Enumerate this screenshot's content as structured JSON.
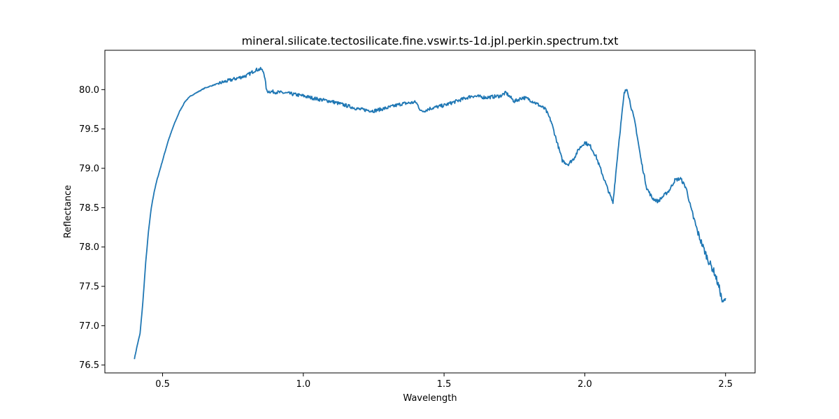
{
  "chart_data": {
    "type": "line",
    "title": "mineral.silicate.tectosilicate.fine.vswir.ts-1d.jpl.perkin.spectrum.txt",
    "xlabel": "Wavelength",
    "ylabel": "Reflectance",
    "xlim": [
      0.295,
      2.605
    ],
    "ylim": [
      76.4,
      80.5
    ],
    "xticks": [
      {
        "value": 0.5,
        "label": "0.5"
      },
      {
        "value": 1.0,
        "label": "1.0"
      },
      {
        "value": 1.5,
        "label": "1.5"
      },
      {
        "value": 2.0,
        "label": "2.0"
      },
      {
        "value": 2.5,
        "label": "2.5"
      }
    ],
    "yticks": [
      {
        "value": 76.5,
        "label": "76.5"
      },
      {
        "value": 77.0,
        "label": "77.0"
      },
      {
        "value": 77.5,
        "label": "77.5"
      },
      {
        "value": 78.0,
        "label": "78.0"
      },
      {
        "value": 78.5,
        "label": "78.5"
      },
      {
        "value": 79.0,
        "label": "79.0"
      },
      {
        "value": 79.5,
        "label": "79.5"
      },
      {
        "value": 80.0,
        "label": "80.0"
      }
    ],
    "grid": false,
    "series": [
      {
        "color": "#1f77b4",
        "x": [
          0.4,
          0.41,
          0.42,
          0.43,
          0.44,
          0.45,
          0.46,
          0.47,
          0.48,
          0.5,
          0.52,
          0.54,
          0.56,
          0.58,
          0.6,
          0.65,
          0.7,
          0.75,
          0.8,
          0.83,
          0.85,
          0.86,
          0.87,
          0.9,
          0.95,
          1.0,
          1.05,
          1.1,
          1.15,
          1.2,
          1.25,
          1.3,
          1.35,
          1.4,
          1.42,
          1.45,
          1.5,
          1.55,
          1.6,
          1.65,
          1.7,
          1.72,
          1.75,
          1.78,
          1.8,
          1.83,
          1.86,
          1.88,
          1.9,
          1.92,
          1.94,
          1.96,
          1.98,
          2.0,
          2.02,
          2.04,
          2.06,
          2.08,
          2.1,
          2.12,
          2.14,
          2.15,
          2.16,
          2.18,
          2.2,
          2.22,
          2.24,
          2.26,
          2.28,
          2.3,
          2.32,
          2.34,
          2.36,
          2.38,
          2.4,
          2.42,
          2.44,
          2.46,
          2.48,
          2.49,
          2.5
        ],
        "y": [
          76.58,
          76.75,
          76.9,
          77.3,
          77.8,
          78.2,
          78.5,
          78.7,
          78.85,
          79.1,
          79.35,
          79.55,
          79.72,
          79.85,
          79.92,
          80.02,
          80.08,
          80.13,
          80.18,
          80.25,
          80.26,
          80.22,
          79.98,
          79.97,
          79.95,
          79.92,
          79.88,
          79.85,
          79.8,
          79.75,
          79.73,
          79.77,
          79.82,
          79.84,
          79.72,
          79.76,
          79.8,
          79.86,
          79.92,
          79.9,
          79.92,
          79.96,
          79.85,
          79.9,
          79.88,
          79.82,
          79.75,
          79.6,
          79.35,
          79.1,
          79.05,
          79.12,
          79.25,
          79.33,
          79.28,
          79.15,
          78.95,
          78.75,
          78.56,
          79.3,
          79.95,
          80.02,
          79.85,
          79.55,
          79.1,
          78.75,
          78.62,
          78.58,
          78.65,
          78.72,
          78.85,
          78.87,
          78.75,
          78.45,
          78.2,
          78.0,
          77.82,
          77.68,
          77.45,
          77.28,
          77.35
        ]
      }
    ]
  }
}
